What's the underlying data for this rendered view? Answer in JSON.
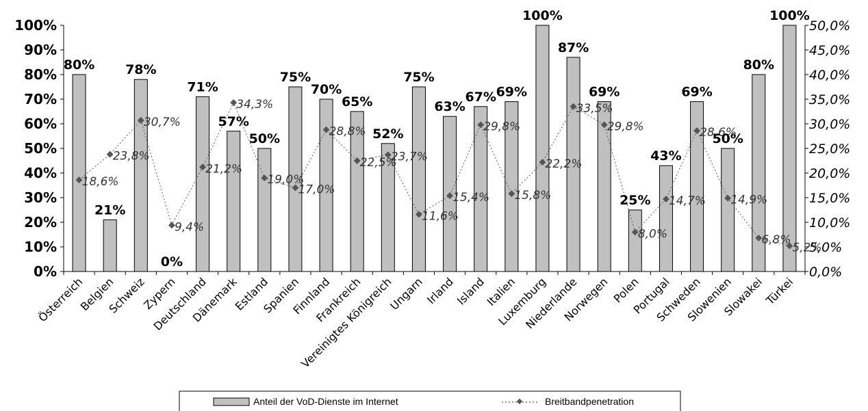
{
  "colors": {
    "bar_fill": "#c0c0c0",
    "bar_stroke": "#000000",
    "line": "#555555",
    "marker": "#555555"
  },
  "chart_data": {
    "type": "bar",
    "categories": [
      "Österreich",
      "Belgien",
      "Schweiz",
      "Zypern",
      "Deutschland",
      "Dänemark",
      "Estland",
      "Spanien",
      "Finnland",
      "Frankreich",
      "Vereinigtes Königreich",
      "Ungarn",
      "Irland",
      "Island",
      "Italien",
      "Luxemburg",
      "Niederlande",
      "Norwegen",
      "Polen",
      "Portugal",
      "Schweden",
      "Slowenien",
      "Slowakei",
      "Türkei"
    ],
    "series": [
      {
        "name": "Anteil der VoD-Dienste im Internet",
        "type": "bar",
        "axis": "left",
        "values": [
          80,
          21,
          78,
          0,
          71,
          57,
          50,
          75,
          70,
          65,
          52,
          75,
          63,
          67,
          69,
          100,
          87,
          69,
          25,
          43,
          69,
          50,
          80,
          100
        ],
        "labels": [
          "80%",
          "21%",
          "78%",
          "0%",
          "71%",
          "57%",
          "50%",
          "75%",
          "70%",
          "65%",
          "52%",
          "75%",
          "63%",
          "67%",
          "69%",
          "100%",
          "87%",
          "69%",
          "25%",
          "43%",
          "69%",
          "50%",
          "80%",
          "100%"
        ]
      },
      {
        "name": "Breitbandpenetration",
        "type": "line",
        "axis": "right",
        "values": [
          18.6,
          23.8,
          30.7,
          9.4,
          21.2,
          34.3,
          19.0,
          17.0,
          28.8,
          22.5,
          23.7,
          11.6,
          15.4,
          29.8,
          15.8,
          22.2,
          33.5,
          29.8,
          8.0,
          14.7,
          28.6,
          14.9,
          6.8,
          5.2
        ],
        "labels": [
          "18,6%",
          "23,8%",
          "30,7%",
          "9,4%",
          "21,2%",
          "34,3%",
          "19,0%",
          "17,0%",
          "28,8%",
          "22,5%",
          "23,7%",
          "11,6%",
          "15,4%",
          "29,8%",
          "15,8%",
          "22,2%",
          "33,5%",
          "29,8%",
          "8,0%",
          "14,7%",
          "28,6%",
          "14,9%",
          "6,8%",
          "5,2%"
        ]
      }
    ],
    "y_left": {
      "range": [
        0,
        100
      ],
      "ticks": [
        "0%",
        "10%",
        "20%",
        "30%",
        "40%",
        "50%",
        "60%",
        "70%",
        "80%",
        "90%",
        "100%"
      ]
    },
    "y_right": {
      "range": [
        0,
        50
      ],
      "ticks": [
        "0,0%",
        "5,0%",
        "10,0%",
        "15,0%",
        "20,0%",
        "25,0%",
        "30,0%",
        "35,0%",
        "40,0%",
        "45,0%",
        "50,0%"
      ]
    },
    "grid": false,
    "legend_position": "bottom",
    "legend": [
      "Anteil der VoD-Dienste im Internet",
      "Breitbandpenetration"
    ]
  }
}
